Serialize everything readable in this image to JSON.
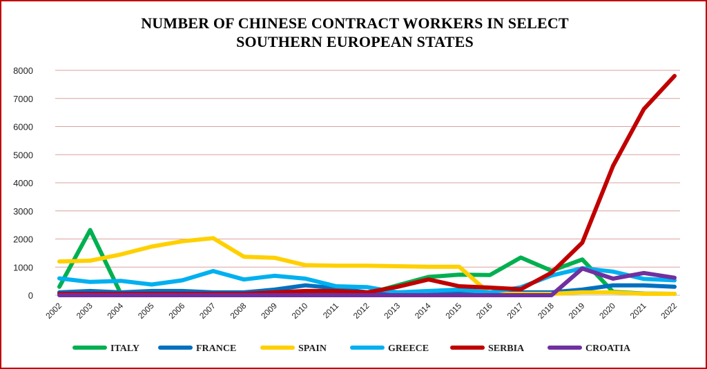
{
  "chart_data": {
    "type": "line",
    "title_lines": [
      "NUMBER OF CHINESE CONTRACT WORKERS IN SELECT",
      "SOUTHERN EUROPEAN STATES"
    ],
    "xlabel": "",
    "ylabel": "",
    "x": [
      "2002",
      "2003",
      "2004",
      "2005",
      "2006",
      "2007",
      "2008",
      "2009",
      "2010",
      "2011",
      "2012",
      "2013",
      "2014",
      "2015",
      "2016",
      "2017",
      "2018",
      "2019",
      "2020",
      "2021",
      "2022"
    ],
    "ylim": [
      0,
      8000
    ],
    "yticks": [
      "0",
      "1000",
      "2000",
      "3000",
      "4000",
      "5000",
      "6000",
      "7000",
      "8000"
    ],
    "grid": true,
    "legend_position": "bottom",
    "series": [
      {
        "name": "ITALY",
        "color": "#00b050",
        "values": [
          300,
          2320,
          50,
          50,
          50,
          50,
          50,
          50,
          50,
          50,
          50,
          350,
          650,
          730,
          720,
          1340,
          870,
          1270,
          120,
          60,
          50
        ]
      },
      {
        "name": "FRANCE",
        "color": "#0070c0",
        "values": [
          100,
          150,
          100,
          150,
          150,
          100,
          100,
          200,
          350,
          250,
          100,
          100,
          100,
          100,
          100,
          100,
          100,
          200,
          350,
          350,
          300
        ]
      },
      {
        "name": "SPAIN",
        "color": "#ffd000",
        "values": [
          1200,
          1230,
          1450,
          1730,
          1920,
          2030,
          1370,
          1330,
          1070,
          1050,
          1050,
          1030,
          1010,
          1010,
          50,
          50,
          50,
          100,
          100,
          50,
          50
        ]
      },
      {
        "name": "GREECE",
        "color": "#00b0f0",
        "values": [
          600,
          470,
          510,
          380,
          530,
          860,
          560,
          690,
          590,
          320,
          290,
          100,
          150,
          200,
          100,
          280,
          700,
          960,
          840,
          580,
          530
        ]
      },
      {
        "name": "SERBIA",
        "color": "#c00000",
        "values": [
          50,
          50,
          50,
          50,
          50,
          50,
          50,
          100,
          150,
          150,
          100,
          300,
          560,
          320,
          270,
          210,
          800,
          1870,
          4600,
          6620,
          7800
        ]
      },
      {
        "name": "CROATIA",
        "color": "#7030a0",
        "values": [
          0,
          0,
          0,
          0,
          0,
          0,
          0,
          0,
          0,
          0,
          0,
          0,
          0,
          0,
          0,
          0,
          0,
          950,
          590,
          790,
          620
        ]
      }
    ]
  }
}
